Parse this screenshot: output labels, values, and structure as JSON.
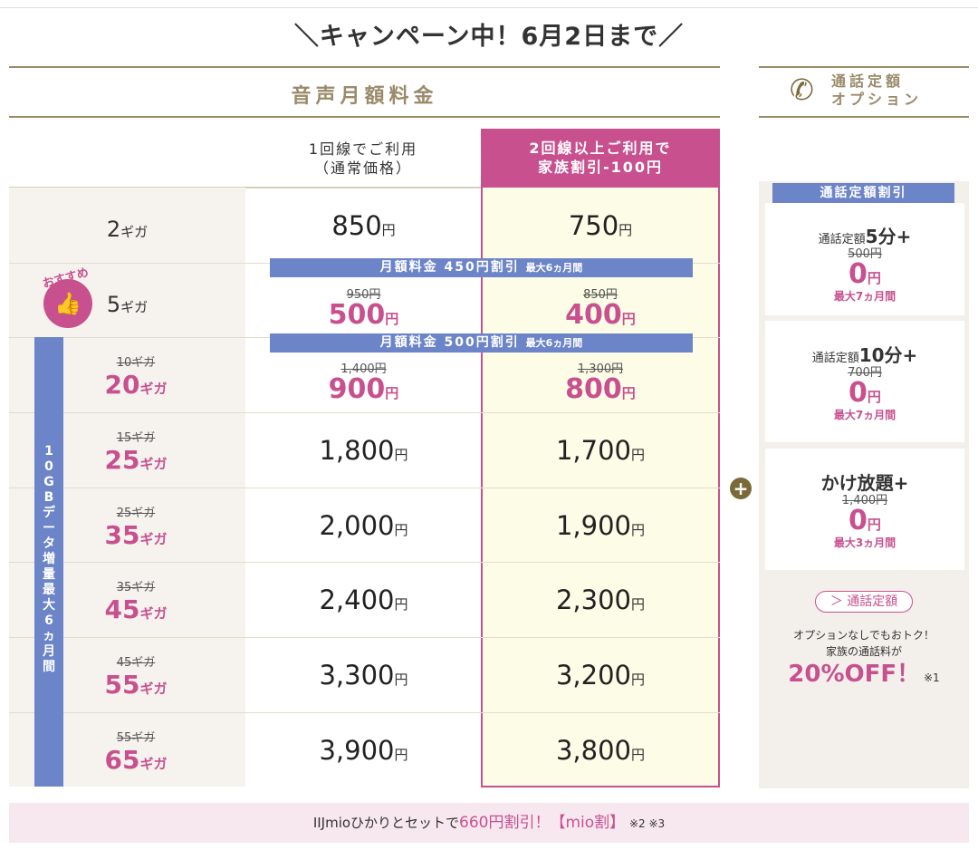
{
  "campaign_title": "＼キャンペーン中！6月2日まで／",
  "main_header": "音声月額料金",
  "option_header": {
    "line1": "通話定額",
    "line2": "オプション"
  },
  "columns": {
    "single": {
      "line1": "1回線でご利用",
      "line2": "（通常価格）"
    },
    "family": {
      "line1": "2回線以上ご利用で",
      "line2": "家族割引-100円"
    }
  },
  "unit_gb": "ギガ",
  "unit_yen": "円",
  "recommend_badge": "おすすめ",
  "banners": [
    {
      "main": "月額料金 450円割引",
      "sub": "最大6ヵ月間"
    },
    {
      "main": "月額料金 500円割引",
      "sub": "最大6ヵ月間"
    }
  ],
  "data_boost_label": "10GBデータ増量 最大6ヵ月間",
  "rows": [
    {
      "gb": "2",
      "old_gb": "",
      "price1": "850",
      "old1": "",
      "price2": "750",
      "old2": ""
    },
    {
      "gb": "5",
      "old_gb": "",
      "price1": "500",
      "old1": "950円",
      "price2": "400",
      "old2": "850円"
    },
    {
      "gb": "20",
      "old_gb": "10ギガ",
      "price1": "900",
      "old1": "1,400円",
      "price2": "800",
      "old2": "1,300円"
    },
    {
      "gb": "25",
      "old_gb": "15ギガ",
      "price1": "1,800",
      "old1": "",
      "price2": "1,700",
      "old2": ""
    },
    {
      "gb": "35",
      "old_gb": "25ギガ",
      "price1": "2,000",
      "old1": "",
      "price2": "1,900",
      "old2": ""
    },
    {
      "gb": "45",
      "old_gb": "35ギガ",
      "price1": "2,400",
      "old1": "",
      "price2": "2,300",
      "old2": ""
    },
    {
      "gb": "55",
      "old_gb": "45ギガ",
      "price1": "3,300",
      "old1": "",
      "price2": "3,200",
      "old2": ""
    },
    {
      "gb": "65",
      "old_gb": "55ギガ",
      "price1": "3,900",
      "old1": "",
      "price2": "3,800",
      "old2": ""
    }
  ],
  "options": {
    "discount_header": "通話定額割引",
    "cards": [
      {
        "prefix": "通話定額",
        "name": "5分+",
        "old": "500円",
        "price": "0",
        "period": "最大7ヵ月間"
      },
      {
        "prefix": "通話定額",
        "name": "10分+",
        "old": "700円",
        "price": "0",
        "period": "最大7ヵ月間"
      },
      {
        "prefix": "",
        "name": "かけ放題+",
        "old": "1,400円",
        "price": "0",
        "period": "最大3ヵ月間"
      }
    ],
    "link_label": "＞ 通話定額",
    "note1": "オプションなしでもおトク！",
    "note2": "家族の通話料が",
    "off": "20%OFF！",
    "off_note": "※1"
  },
  "footer": {
    "pre": "IIJmioひかりとセットで",
    "highlight": "660円割引！【mio割】",
    "note": "※2 ※3"
  },
  "colors": {
    "pink": "#c8508f",
    "blue": "#6c84c8",
    "gold": "#9c8c66"
  }
}
